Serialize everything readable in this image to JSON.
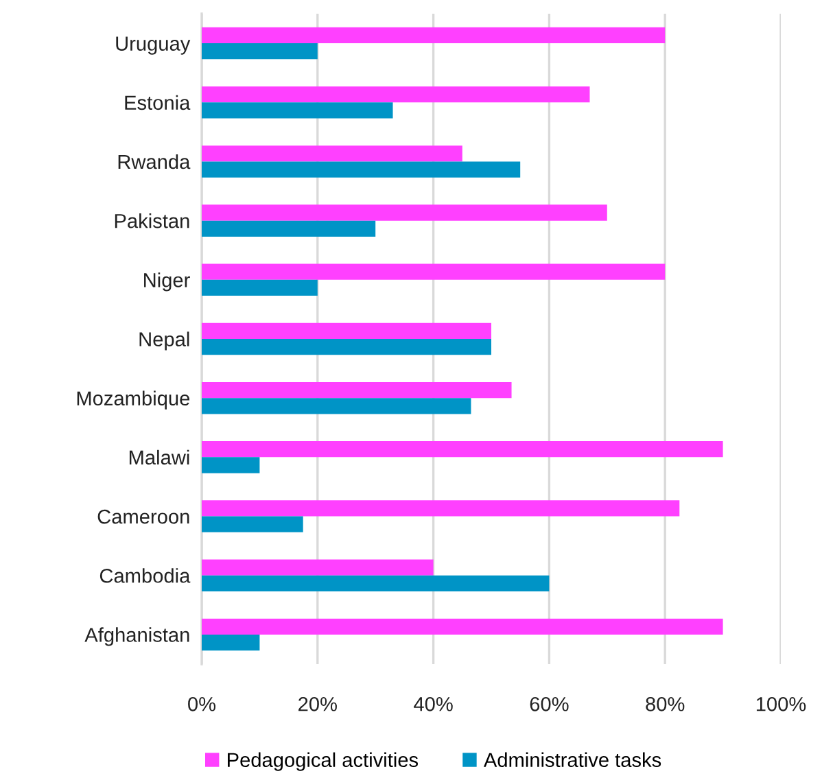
{
  "chart_data": {
    "type": "bar",
    "orientation": "horizontal",
    "categories": [
      "Uruguay",
      "Estonia",
      "Rwanda",
      "Pakistan",
      "Niger",
      "Nepal",
      "Mozambique",
      "Malawi",
      "Cameroon",
      "Cambodia",
      "Afghanistan"
    ],
    "series": [
      {
        "name": "Pedagogical activities",
        "color": "#ff40ff",
        "values": [
          80,
          67,
          45,
          70,
          80,
          50,
          53.5,
          90,
          82.5,
          40,
          90
        ]
      },
      {
        "name": "Administrative tasks",
        "color": "#0094c6",
        "values": [
          20,
          33,
          55,
          30,
          20,
          50,
          46.5,
          10,
          17.5,
          60,
          10
        ]
      }
    ],
    "xlim": [
      0,
      100
    ],
    "xticks": [
      {
        "value": 0,
        "label": "0%"
      },
      {
        "value": 20,
        "label": "20%"
      },
      {
        "value": 40,
        "label": "40%"
      },
      {
        "value": 60,
        "label": "60%"
      },
      {
        "value": 80,
        "label": "80%"
      },
      {
        "value": 100,
        "label": "100%"
      }
    ],
    "grid": "x",
    "legend": "bottom"
  }
}
